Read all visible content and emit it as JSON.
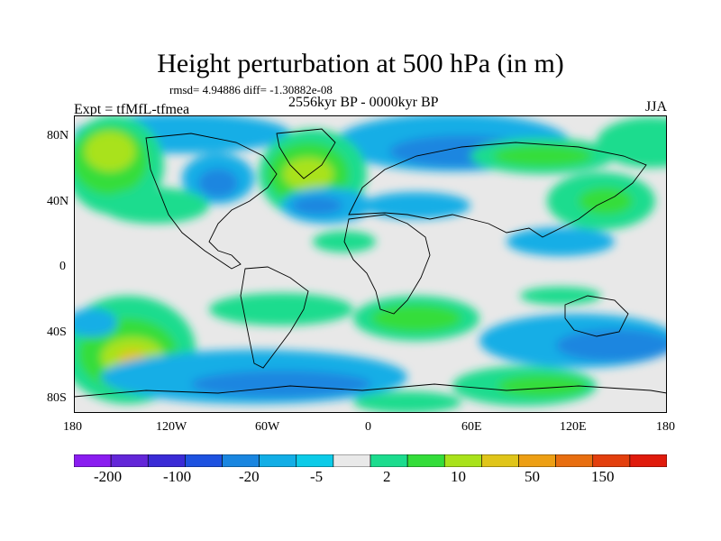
{
  "title": "Height perturbation at 500 hPa (in m)",
  "stats": "rmsd= 4.94886 diff= -1.30882e-08",
  "period": "2556kyr BP - 0000kyr BP",
  "expt": "Expt = tfMfL-tfmea",
  "season": "JJA",
  "map": {
    "lat_ticks": [
      "80N",
      "40N",
      "0",
      "40S",
      "80S"
    ],
    "lon_ticks": [
      "180",
      "120W",
      "60W",
      "0",
      "60E",
      "120E",
      "180"
    ],
    "background_color": "#e8e8e8"
  },
  "colorbar": {
    "colors": [
      "#8a1df0",
      "#6326d8",
      "#3a2bd6",
      "#1e52e0",
      "#1a86e0",
      "#12aee6",
      "#0ccbe8",
      "#e9e9e9",
      "#1cdc8e",
      "#34dd3a",
      "#a9e21b",
      "#e0c51a",
      "#ed9f14",
      "#e86e10",
      "#e33f0d",
      "#e01b0c"
    ],
    "labels": [
      "-200",
      "-100",
      "-20",
      "-5",
      "2",
      "10",
      "50",
      "150"
    ]
  }
}
